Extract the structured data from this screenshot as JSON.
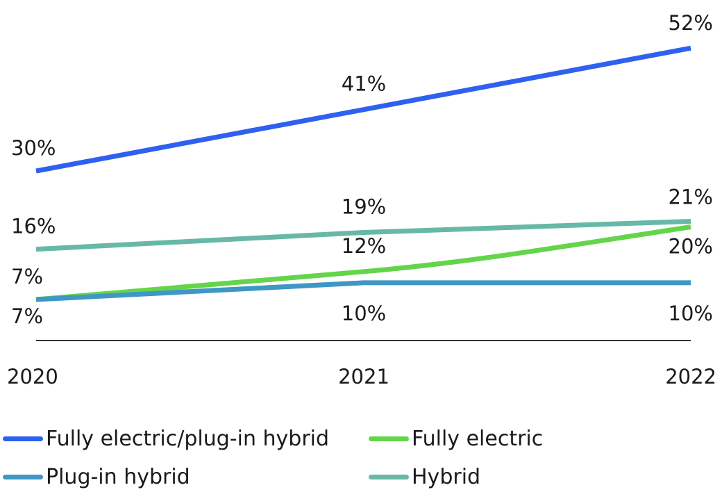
{
  "chart_data": {
    "type": "line",
    "x": [
      "2020",
      "2021",
      "2022"
    ],
    "ylim": [
      0,
      55
    ],
    "unit": "%",
    "grid": false,
    "legend_position": "bottom",
    "series": [
      {
        "name": "Fully electric/plug-in hybrid",
        "color": "#2f61f0",
        "values": [
          30,
          41,
          52
        ],
        "labels": [
          "30%",
          "41%",
          "52%"
        ]
      },
      {
        "name": "Fully electric",
        "color": "#64d54a",
        "values": [
          7,
          12,
          20
        ],
        "labels": [
          "7%",
          "12%",
          "20%"
        ]
      },
      {
        "name": "Plug-in hybrid",
        "color": "#3f97c6",
        "values": [
          7,
          10,
          10
        ],
        "labels": [
          "7%",
          "10%",
          "10%"
        ]
      },
      {
        "name": "Hybrid",
        "color": "#68b8a7",
        "values": [
          16,
          19,
          21
        ],
        "labels": [
          "16%",
          "19%",
          "21%"
        ]
      }
    ]
  }
}
